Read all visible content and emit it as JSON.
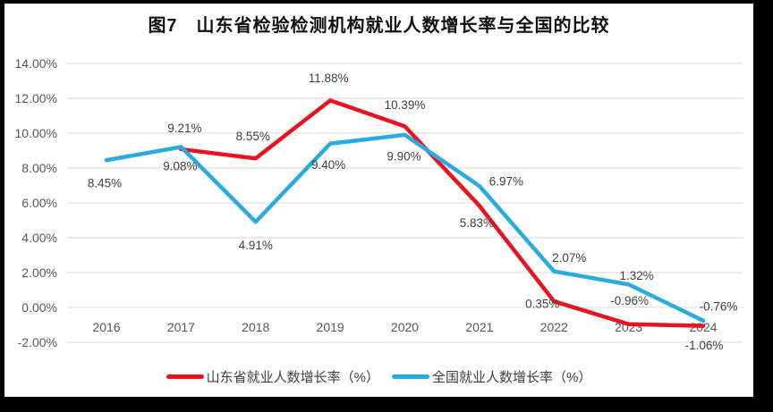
{
  "title": "图7　山东省检验检测机构就业人数增长率与全国的比较",
  "colors": {
    "frame": "#000000",
    "chart_background": "#ffffff",
    "gridline": "#d9d9d9",
    "axis_text": "#595959",
    "data_label_text": "#404040",
    "title_text": "#111111",
    "shandong_red": "#e8131f",
    "national_blue": "#29abe2"
  },
  "chart_data": {
    "type": "line",
    "title": "图7　山东省检验检测机构就业人数增长率与全国的比较",
    "categories": [
      "2016",
      "2017",
      "2018",
      "2019",
      "2020",
      "2021",
      "2022",
      "2023",
      "2024"
    ],
    "series": [
      {
        "name": "山东省就业人数增长率（%）",
        "color": "#e8131f",
        "values": [
          null,
          9.08,
          8.55,
          11.88,
          10.39,
          5.83,
          0.35,
          -0.96,
          -1.06
        ],
        "point_labels": [
          "",
          "9.08%",
          "8.55%",
          "11.88%",
          "10.39%",
          "5.83%",
          "0.35%",
          "-0.96%",
          "-1.06%"
        ]
      },
      {
        "name": "全国就业人数增长率（%）",
        "color": "#29abe2",
        "values": [
          8.45,
          9.21,
          4.91,
          9.4,
          9.9,
          6.97,
          2.07,
          1.32,
          -0.76
        ],
        "point_labels": [
          "8.45%",
          "9.21%",
          "4.91%",
          "9.40%",
          "9.90%",
          "6.97%",
          "2.07%",
          "1.32%",
          "-0.76%"
        ]
      }
    ],
    "y_ticks": [
      "14.00%",
      "12.00%",
      "10.00%",
      "8.00%",
      "6.00%",
      "4.00%",
      "2.00%",
      "0.00%",
      "-2.00%"
    ],
    "ylim": [
      -2,
      14
    ],
    "xlabel": "",
    "ylabel": "",
    "grid": true,
    "legend_position": "bottom",
    "label_offsets": [
      [
        [
          0,
          0
        ],
        [
          -1,
          19
        ],
        [
          -3,
          -25
        ],
        [
          -2,
          -25
        ],
        [
          0,
          -24
        ],
        [
          -3,
          19
        ],
        [
          -13,
          3
        ],
        [
          1,
          -26
        ],
        [
          1,
          22
        ]
      ],
      [
        [
          -2,
          26
        ],
        [
          4,
          -21
        ],
        [
          0,
          26
        ],
        [
          -2,
          24
        ],
        [
          -1,
          24
        ],
        [
          30,
          -5
        ],
        [
          17,
          -15
        ],
        [
          9,
          -10
        ],
        [
          17,
          -16
        ]
      ]
    ]
  }
}
